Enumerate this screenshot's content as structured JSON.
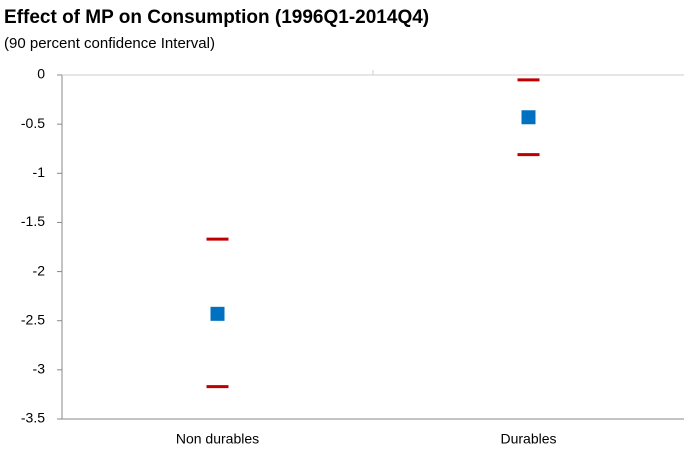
{
  "chart_data": {
    "type": "interval",
    "title": "Effect of MP on Consumption (1996Q1-2014Q4)",
    "subtitle": "(90 percent confidence Interval)",
    "categories": [
      "Non durables",
      "Durables"
    ],
    "values": [
      -2.43,
      -0.43
    ],
    "upper": [
      -1.67,
      -0.05
    ],
    "lower": [
      -3.17,
      -0.81
    ],
    "color": "#0070c0",
    "bound_color": "#c00000",
    "ylim": [
      -3.5,
      0
    ],
    "yticks": [
      0,
      -0.5,
      -1,
      -1.5,
      -2,
      -2.5,
      -3,
      -3.5
    ]
  }
}
